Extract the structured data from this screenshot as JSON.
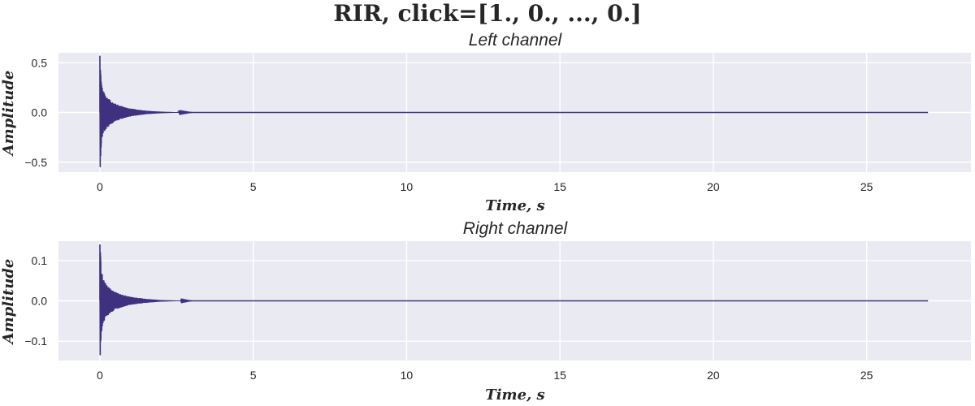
{
  "figure": {
    "title": "RIR, click=[1., 0., ..., 0.]",
    "series_color": "#3f3180",
    "background": "#eaeaf2",
    "grid_color": "#ffffff"
  },
  "chart_data": [
    {
      "type": "line",
      "title": "Left channel",
      "xlabel": "Time, s",
      "ylabel": "Amplitude",
      "xlim": [
        -1.35,
        28.4
      ],
      "ylim": [
        -0.6,
        0.6
      ],
      "xticks": [
        0,
        5,
        10,
        15,
        20,
        25
      ],
      "xtick_labels": [
        "0",
        "5",
        "10",
        "15",
        "20",
        "25"
      ],
      "yticks": [
        -0.5,
        0.0,
        0.5
      ],
      "ytick_labels": [
        "−0.5",
        "0.0",
        "0.5"
      ],
      "grid": true,
      "signal": {
        "duration": 27.0,
        "peak_max": 0.57,
        "peak_min": -0.55,
        "envelope_t": [
          0.0,
          0.05,
          0.1,
          0.2,
          0.35,
          0.5,
          0.75,
          1.0,
          1.5,
          2.0,
          2.5,
          3.0,
          27.0
        ],
        "envelope_a": [
          0.57,
          0.3,
          0.22,
          0.17,
          0.12,
          0.09,
          0.06,
          0.04,
          0.018,
          0.008,
          0.003,
          0.0,
          0.0
        ]
      }
    },
    {
      "type": "line",
      "title": "Right channel",
      "xlabel": "Time, s",
      "ylabel": "Amplitude",
      "xlim": [
        -1.35,
        28.4
      ],
      "ylim": [
        -0.148,
        0.148
      ],
      "xticks": [
        0,
        5,
        10,
        15,
        20,
        25
      ],
      "xtick_labels": [
        "0",
        "5",
        "10",
        "15",
        "20",
        "25"
      ],
      "yticks": [
        -0.1,
        0.0,
        0.1
      ],
      "ytick_labels": [
        "−0.1",
        "0.0",
        "0.1"
      ],
      "grid": true,
      "signal": {
        "duration": 27.0,
        "peak_max": 0.14,
        "peak_min": -0.135,
        "envelope_t": [
          0.0,
          0.05,
          0.1,
          0.2,
          0.35,
          0.5,
          0.75,
          1.0,
          1.5,
          2.0,
          2.5,
          3.0,
          27.0
        ],
        "envelope_a": [
          0.14,
          0.08,
          0.055,
          0.042,
          0.03,
          0.022,
          0.015,
          0.01,
          0.005,
          0.002,
          0.0008,
          0.0,
          0.0
        ]
      }
    }
  ]
}
